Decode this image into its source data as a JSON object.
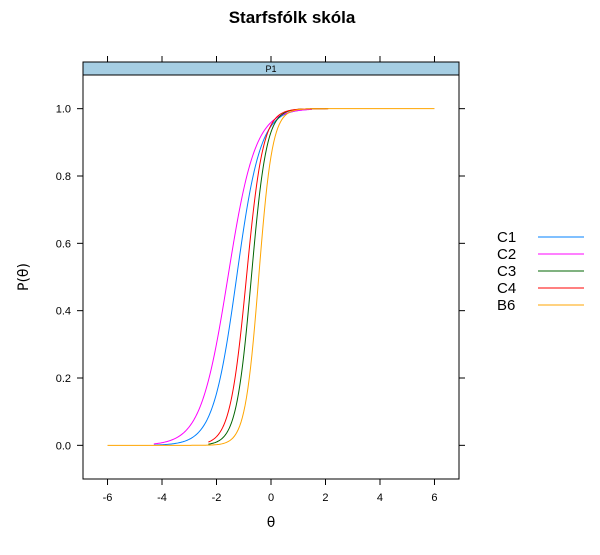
{
  "chart_data": {
    "type": "line",
    "title": "Starfsfólk skóla",
    "panel_label": "P1",
    "xlabel": "θ",
    "ylabel": "P(θ)",
    "xlim": [
      -6.9,
      6.9
    ],
    "ylim": [
      -0.1,
      1.1
    ],
    "x_ticks": [
      -6,
      -4,
      -2,
      0,
      2,
      4,
      6
    ],
    "y_ticks": [
      0.0,
      0.2,
      0.4,
      0.6,
      0.8,
      1.0
    ],
    "x_tick_labels": [
      "-6",
      "-4",
      "-2",
      "0",
      "2",
      "4",
      "6"
    ],
    "y_tick_labels": [
      "0.0",
      "0.2",
      "0.4",
      "0.6",
      "0.8",
      "1.0"
    ],
    "grid": false,
    "legend_position": "right",
    "series": [
      {
        "name": "C1",
        "color": "#0080ff",
        "x_range": [
          -4.3,
          1.5
        ],
        "midpoint": -1.26,
        "slope": 2.3
      },
      {
        "name": "C2",
        "color": "#ff00ff",
        "x_range": [
          -4.3,
          1.5
        ],
        "midpoint": -1.58,
        "slope": 2.0
      },
      {
        "name": "C3",
        "color": "#006400",
        "x_range": [
          -2.3,
          2.1
        ],
        "midpoint": -0.72,
        "slope": 3.6
      },
      {
        "name": "C4",
        "color": "#ff0000",
        "x_range": [
          -2.3,
          2.1
        ],
        "midpoint": -0.9,
        "slope": 3.3
      },
      {
        "name": "B6",
        "color": "#ffa500",
        "x_range": [
          -6.0,
          6.0
        ],
        "midpoint": -0.45,
        "slope": 4.0
      }
    ]
  }
}
